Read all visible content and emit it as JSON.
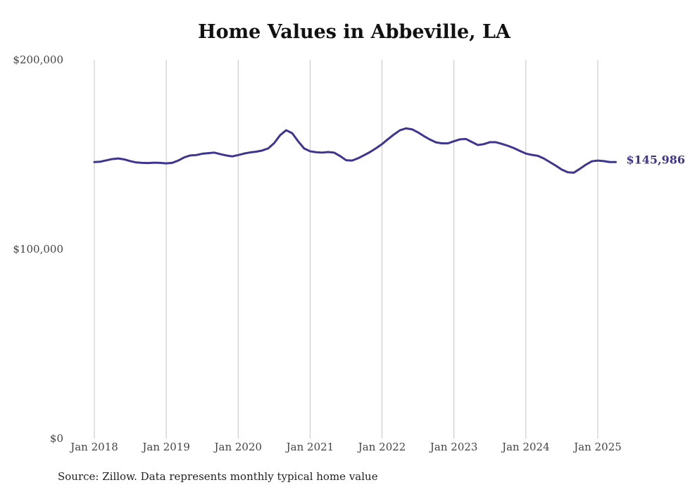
{
  "chart_data": {
    "type": "line",
    "title": "Home Values in Abbeville, LA",
    "xlabel": "",
    "ylabel": "",
    "ylim": [
      0,
      200000
    ],
    "y_ticks": [
      {
        "value": 0,
        "label": "$0"
      },
      {
        "value": 100000,
        "label": "$100,000"
      },
      {
        "value": 200000,
        "label": "$200,000"
      }
    ],
    "x_ticks": [
      {
        "date": "2018-01",
        "label": "Jan 2018"
      },
      {
        "date": "2019-01",
        "label": "Jan 2019"
      },
      {
        "date": "2020-01",
        "label": "Jan 2020"
      },
      {
        "date": "2021-01",
        "label": "Jan 2021"
      },
      {
        "date": "2022-01",
        "label": "Jan 2022"
      },
      {
        "date": "2023-01",
        "label": "Jan 2023"
      },
      {
        "date": "2024-01",
        "label": "Jan 2024"
      },
      {
        "date": "2025-01",
        "label": "Jan 2025"
      }
    ],
    "grid": {
      "vertical": true,
      "horizontal": false
    },
    "line_color": "#3d3591",
    "end_label": "$145,986",
    "series": [
      {
        "x": [
          "2018-01",
          "2018-02",
          "2018-03",
          "2018-04",
          "2018-05",
          "2018-06",
          "2018-07",
          "2018-08",
          "2018-09",
          "2018-10",
          "2018-11",
          "2018-12",
          "2019-01",
          "2019-02",
          "2019-03",
          "2019-04",
          "2019-05",
          "2019-06",
          "2019-07",
          "2019-08",
          "2019-09",
          "2019-10",
          "2019-11",
          "2019-12",
          "2020-01",
          "2020-02",
          "2020-03",
          "2020-04",
          "2020-05",
          "2020-06",
          "2020-07",
          "2020-08",
          "2020-09",
          "2020-10",
          "2020-11",
          "2020-12",
          "2021-01",
          "2021-02",
          "2021-03",
          "2021-04",
          "2021-05",
          "2021-06",
          "2021-07",
          "2021-08",
          "2021-09",
          "2021-10",
          "2021-11",
          "2021-12",
          "2022-01",
          "2022-02",
          "2022-03",
          "2022-04",
          "2022-05",
          "2022-06",
          "2022-07",
          "2022-08",
          "2022-09",
          "2022-10",
          "2022-11",
          "2022-12",
          "2023-01",
          "2023-02",
          "2023-03",
          "2023-04",
          "2023-05",
          "2023-06",
          "2023-07",
          "2023-08",
          "2023-09",
          "2023-10",
          "2023-11",
          "2023-12",
          "2024-01",
          "2024-02",
          "2024-03",
          "2024-04",
          "2024-05",
          "2024-06",
          "2024-07",
          "2024-08",
          "2024-09",
          "2024-10",
          "2024-11",
          "2024-12",
          "2025-01",
          "2025-02",
          "2025-03",
          "2025-04"
        ],
        "y": [
          146000,
          146200,
          146900,
          147600,
          147900,
          147400,
          146500,
          145800,
          145600,
          145500,
          145700,
          145600,
          145300,
          145600,
          146800,
          148500,
          149500,
          149700,
          150400,
          150700,
          151000,
          150200,
          149500,
          149000,
          149700,
          150500,
          151100,
          151500,
          152100,
          153200,
          156000,
          160200,
          162800,
          161300,
          157000,
          153200,
          151700,
          151200,
          151000,
          151300,
          151000,
          149200,
          147000,
          146800,
          148000,
          149600,
          151300,
          153300,
          155500,
          158100,
          160600,
          162800,
          163800,
          163300,
          161700,
          159700,
          157900,
          156400,
          155900,
          155900,
          157000,
          158000,
          158200,
          156600,
          155000,
          155500,
          156500,
          156500,
          155600,
          154600,
          153400,
          151900,
          150500,
          149800,
          149300,
          147900,
          146000,
          144100,
          142000,
          140600,
          140400,
          142400,
          144600,
          146400,
          146800,
          146500,
          146000,
          145986
        ]
      }
    ]
  },
  "source_note": "Source: Zillow. Data represents monthly typical home value"
}
